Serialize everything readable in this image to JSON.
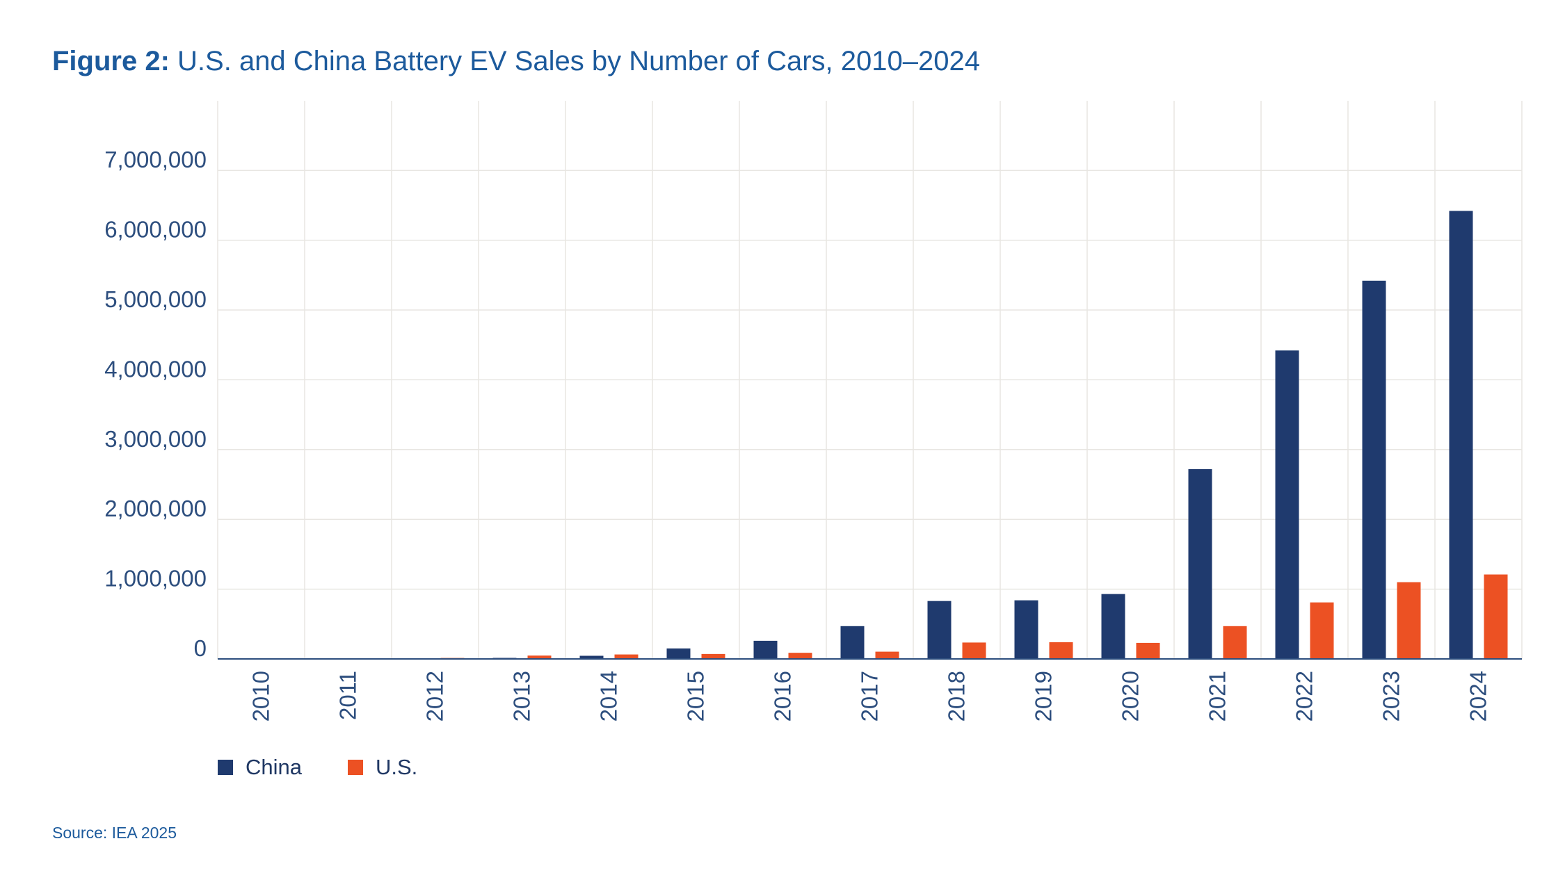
{
  "figure": {
    "label": "Figure 2:",
    "title": "U.S. and China Battery EV Sales by Number of Cars, 2010–2024",
    "source": "Source: IEA 2025"
  },
  "colors": {
    "china": "#1f3a6e",
    "us": "#ec5123",
    "grid": "#e8e6e2",
    "axis": "#2d4e7e"
  },
  "chart_data": {
    "type": "bar",
    "categories": [
      "2010",
      "2011",
      "2012",
      "2013",
      "2014",
      "2015",
      "2016",
      "2017",
      "2018",
      "2019",
      "2020",
      "2021",
      "2022",
      "2023",
      "2024"
    ],
    "series": [
      {
        "name": "China",
        "color": "#1f3a6e",
        "values": [
          1000,
          5000,
          9000,
          15000,
          45000,
          150000,
          260000,
          470000,
          830000,
          840000,
          930000,
          2720000,
          4420000,
          5420000,
          6420000
        ]
      },
      {
        "name": "U.S.",
        "color": "#ec5123",
        "values": [
          0,
          10000,
          14000,
          48000,
          64000,
          71000,
          88000,
          104000,
          235000,
          240000,
          230000,
          470000,
          810000,
          1100000,
          1210000
        ]
      }
    ],
    "ylim": [
      0,
      8000000
    ],
    "yticks": [
      0,
      1000000,
      2000000,
      3000000,
      4000000,
      5000000,
      6000000,
      7000000
    ],
    "ytick_labels": [
      "0",
      "1,000,000",
      "2,000,000",
      "3,000,000",
      "4,000,000",
      "5,000,000",
      "6,000,000",
      "7,000,000"
    ],
    "xlabel": "",
    "ylabel": "",
    "grid": true,
    "legend_position": "bottom-left"
  }
}
